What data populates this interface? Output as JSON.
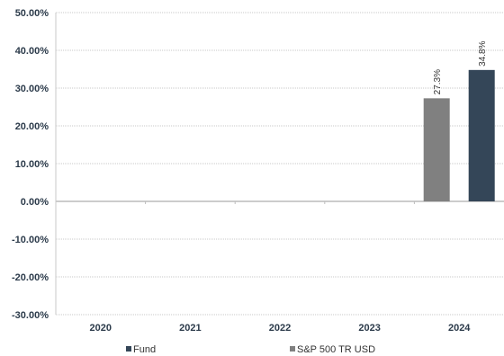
{
  "chart_data": {
    "type": "bar",
    "categories": [
      "2020",
      "2021",
      "2022",
      "2023",
      "2024"
    ],
    "series": [
      {
        "name": "S&P 500 TR USD",
        "color": "#808080",
        "values": [
          null,
          null,
          null,
          null,
          27.3
        ],
        "labels": [
          "",
          "",
          "",
          "",
          "27.3%"
        ]
      },
      {
        "name": "Fund",
        "color": "#344658",
        "values": [
          null,
          null,
          null,
          null,
          34.8
        ],
        "labels": [
          "",
          "",
          "",
          "",
          "34.8%"
        ]
      }
    ],
    "ylim": [
      -30,
      50
    ],
    "yticks": [
      50,
      40,
      30,
      20,
      10,
      0,
      -10,
      -20,
      -30
    ],
    "ytick_labels": [
      "50.00%",
      "40.00%",
      "30.00%",
      "20.00%",
      "10.00%",
      "0.00%",
      "-10.00%",
      "-20.00%",
      "-30.00%"
    ],
    "grid": true,
    "legend_position": "bottom",
    "legend": [
      {
        "name": "Fund",
        "color": "#344658"
      },
      {
        "name": "S&P 500 TR USD",
        "color": "#808080"
      }
    ]
  }
}
